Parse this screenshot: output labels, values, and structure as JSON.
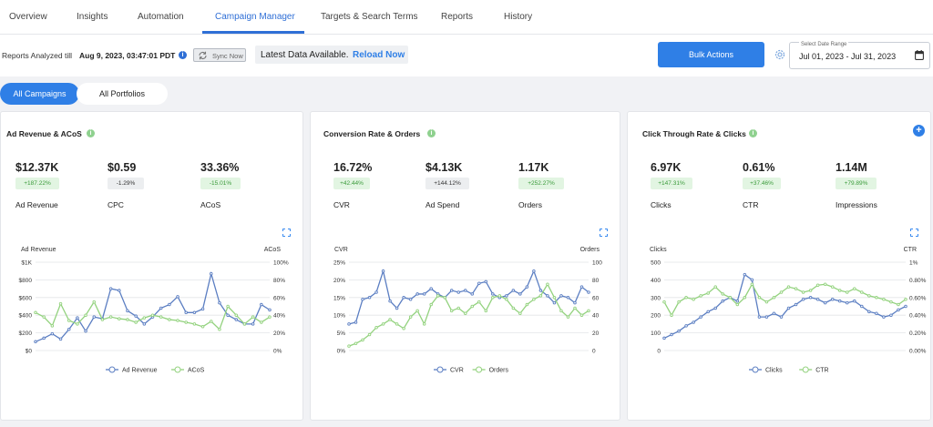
{
  "nav": {
    "tabs": [
      {
        "label": "Overview",
        "active": false
      },
      {
        "label": "Insights",
        "active": false
      },
      {
        "label": "Automation",
        "active": false
      },
      {
        "label": "Campaign Manager",
        "active": true
      },
      {
        "label": "Targets & Search Terms",
        "active": false
      },
      {
        "label": "Reports",
        "active": false
      },
      {
        "label": "History",
        "active": false
      }
    ]
  },
  "toolbar": {
    "reports_prefix": "Reports Analyzed till",
    "reports_date": "Aug 9, 2023, 03:47:01 PDT",
    "sync_label": "Sync Now",
    "latest_text": "Latest Data Available.",
    "reload_label": "Reload Now",
    "bulk_label": "Bulk Actions",
    "date_label": "Select Date Range",
    "date_value": "Jul 01, 2023 - Jul 31, 2023"
  },
  "filters": {
    "all_campaigns": "All Campaigns",
    "all_portfolios": "All Portfolios",
    "active": "All Campaigns"
  },
  "colors": {
    "accent": "#2f7fe6",
    "series_blue": "#5b7ec2",
    "series_green": "#93d27e",
    "info_green": "#6cc070",
    "info_blue": "#2f6fd6"
  },
  "icons": {
    "info": "info-circle-icon",
    "sync": "sync-icon",
    "settings": "gear-icon",
    "calendar": "calendar-icon",
    "expand": "expand-icon",
    "add": "plus-circle-icon"
  },
  "cards": [
    {
      "title": "Ad Revenue & ACoS",
      "metrics": [
        {
          "value": "$12.37K",
          "change": "+187.22%",
          "tone": "positive",
          "label": "Ad Revenue"
        },
        {
          "value": "$0.59",
          "change": "-1.29%",
          "tone": "neutral",
          "label": "CPC"
        },
        {
          "value": "33.36%",
          "change": "-15.01%",
          "tone": "positive",
          "label": "ACoS"
        }
      ]
    },
    {
      "title": "Conversion Rate & Orders",
      "metrics": [
        {
          "value": "16.72%",
          "change": "+42.44%",
          "tone": "positive",
          "label": "CVR"
        },
        {
          "value": "$4.13K",
          "change": "+144.12%",
          "tone": "neutral",
          "label": "Ad Spend"
        },
        {
          "value": "1.17K",
          "change": "+252.27%",
          "tone": "positive",
          "label": "Orders"
        }
      ]
    },
    {
      "title": "Click Through Rate & Clicks",
      "metrics": [
        {
          "value": "6.97K",
          "change": "+147.31%",
          "tone": "positive",
          "label": "Clicks"
        },
        {
          "value": "0.61%",
          "change": "+37.46%",
          "tone": "positive",
          "label": "CTR"
        },
        {
          "value": "1.14M",
          "change": "+79.89%",
          "tone": "positive",
          "label": "Impressions"
        }
      ]
    }
  ],
  "chart_data": [
    {
      "type": "line",
      "ylabel": "Ad Revenue",
      "ylabel_right": "ACoS",
      "ylim": [
        0,
        1000
      ],
      "yticks": [
        "$0",
        "$200",
        "$400",
        "$600",
        "$800",
        "$1K"
      ],
      "ylim_right": [
        0,
        100
      ],
      "yticks_right": [
        "0%",
        "20%",
        "40%",
        "60%",
        "80%",
        "100%"
      ],
      "grid": true,
      "legend": "bottom",
      "series": [
        {
          "name": "Ad Revenue",
          "axis": "left",
          "color": "#5b7ec2",
          "values": [
            100,
            140,
            190,
            130,
            240,
            370,
            220,
            380,
            360,
            700,
            680,
            450,
            390,
            300,
            380,
            480,
            520,
            610,
            430,
            430,
            470,
            870,
            540,
            400,
            350,
            300,
            300,
            520,
            460
          ]
        },
        {
          "name": "ACoS",
          "axis": "right",
          "color": "#93d27e",
          "values": [
            43,
            38,
            28,
            53,
            34,
            30,
            40,
            55,
            35,
            38,
            36,
            35,
            32,
            37,
            40,
            38,
            35,
            34,
            32,
            30,
            27,
            33,
            24,
            50,
            40,
            30,
            38,
            32,
            38
          ]
        }
      ]
    },
    {
      "type": "line",
      "ylabel": "CVR",
      "ylabel_right": "Orders",
      "ylim": [
        0,
        25
      ],
      "yticks": [
        "0%",
        "5%",
        "10%",
        "15%",
        "20%",
        "25%"
      ],
      "ylim_right": [
        0,
        100
      ],
      "yticks_right": [
        "0",
        "20",
        "40",
        "60",
        "80",
        "100"
      ],
      "grid": true,
      "legend": "bottom",
      "series": [
        {
          "name": "CVR",
          "axis": "left",
          "color": "#5b7ec2",
          "values": [
            7.5,
            8,
            14.5,
            15,
            16.5,
            22.5,
            14,
            12,
            15,
            14.5,
            16,
            16,
            17.5,
            16,
            15,
            17,
            16.5,
            17,
            16,
            19,
            19.5,
            16,
            15,
            15.5,
            17,
            16,
            18,
            22.5,
            17,
            15.5,
            13.5,
            15.5,
            15,
            13.5,
            18,
            16.5
          ]
        },
        {
          "name": "Orders",
          "axis": "right",
          "color": "#93d27e",
          "values": [
            5,
            8,
            12,
            18,
            26,
            30,
            35,
            30,
            25,
            38,
            45,
            30,
            52,
            62,
            60,
            45,
            48,
            42,
            50,
            55,
            45,
            60,
            62,
            58,
            48,
            42,
            52,
            58,
            62,
            75,
            60,
            45,
            38,
            48,
            40,
            45
          ]
        }
      ]
    },
    {
      "type": "line",
      "ylabel": "Clicks",
      "ylabel_right": "CTR",
      "ylim": [
        0,
        500
      ],
      "yticks": [
        "0",
        "100",
        "200",
        "300",
        "400",
        "500"
      ],
      "ylim_right": [
        0,
        1
      ],
      "yticks_right": [
        "0.00%",
        "0.20%",
        "0.40%",
        "0.60%",
        "0.80%",
        "1%"
      ],
      "grid": true,
      "legend": "bottom",
      "series": [
        {
          "name": "Clicks",
          "axis": "left",
          "color": "#5b7ec2",
          "values": [
            70,
            90,
            110,
            140,
            160,
            190,
            220,
            240,
            280,
            300,
            280,
            430,
            400,
            190,
            190,
            210,
            190,
            240,
            260,
            290,
            300,
            290,
            270,
            290,
            280,
            270,
            280,
            250,
            220,
            210,
            190,
            200,
            230,
            250
          ]
        },
        {
          "name": "CTR",
          "axis": "right",
          "color": "#93d27e",
          "values": [
            0.55,
            0.4,
            0.55,
            0.6,
            0.58,
            0.62,
            0.65,
            0.72,
            0.64,
            0.6,
            0.52,
            0.6,
            0.75,
            0.6,
            0.55,
            0.6,
            0.66,
            0.72,
            0.7,
            0.66,
            0.68,
            0.74,
            0.75,
            0.72,
            0.68,
            0.66,
            0.7,
            0.66,
            0.62,
            0.6,
            0.58,
            0.55,
            0.52,
            0.58
          ]
        }
      ]
    }
  ]
}
